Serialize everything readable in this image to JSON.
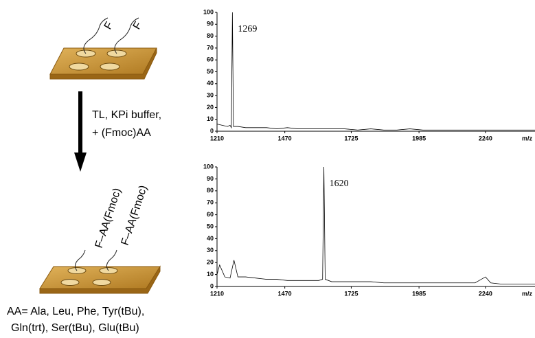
{
  "scheme": {
    "top_labels": [
      "F",
      "F"
    ],
    "step_lines": [
      "TL, KPi buffer,",
      "+ (Fmoc)AA"
    ],
    "bottom_labels": [
      "F–AA(Fmoc)",
      "F–AA(Fmoc)"
    ],
    "footer_lines": [
      "AA= Ala, Leu, Phe, Tyr(tBu),",
      "Gln(trt), Ser(tBu), Glu(tBu)"
    ]
  },
  "chart_data": [
    {
      "type": "line",
      "annotation": "1269",
      "xlabel": "m/z",
      "color": "#000000",
      "x": [
        1210,
        1230,
        1250,
        1260,
        1265,
        1269,
        1273,
        1290,
        1320,
        1360,
        1400,
        1440,
        1480,
        1520,
        1560,
        1600,
        1650,
        1700,
        1750,
        1800,
        1850,
        1900,
        1950,
        2000,
        2050,
        2100,
        2150,
        2200,
        2250,
        2300,
        2350,
        2400,
        2430
      ],
      "values": [
        6,
        5,
        4,
        5,
        3,
        100,
        4,
        4,
        3,
        3,
        3,
        2,
        3,
        2,
        2,
        2,
        2,
        2,
        1,
        2,
        1,
        1,
        2,
        1,
        1,
        1,
        1,
        1,
        1,
        1,
        1,
        1,
        1
      ],
      "xlim": [
        1210,
        2430
      ],
      "ylim": [
        0,
        100
      ],
      "xticks": [
        1210,
        1470,
        1725,
        1985,
        2240
      ],
      "yticks": [
        0,
        10,
        20,
        30,
        40,
        50,
        60,
        70,
        80,
        90,
        100
      ]
    },
    {
      "type": "line",
      "annotation": "1620",
      "xlabel": "m/z",
      "color": "#000000",
      "x": [
        1210,
        1220,
        1240,
        1260,
        1275,
        1290,
        1320,
        1360,
        1400,
        1440,
        1480,
        1520,
        1560,
        1600,
        1615,
        1620,
        1625,
        1650,
        1700,
        1750,
        1800,
        1850,
        1900,
        1950,
        2000,
        2050,
        2100,
        2150,
        2200,
        2240,
        2260,
        2300,
        2350,
        2400,
        2430
      ],
      "values": [
        10,
        18,
        8,
        7,
        22,
        8,
        8,
        7,
        6,
        6,
        5,
        5,
        5,
        5,
        6,
        100,
        6,
        4,
        4,
        4,
        4,
        3,
        3,
        3,
        3,
        3,
        3,
        3,
        3,
        8,
        3,
        2,
        2,
        2,
        2
      ],
      "xlim": [
        1210,
        2430
      ],
      "ylim": [
        0,
        100
      ],
      "xticks": [
        1210,
        1470,
        1725,
        1985,
        2240
      ],
      "yticks": [
        0,
        10,
        20,
        30,
        40,
        50,
        60,
        70,
        80,
        90,
        100
      ]
    }
  ]
}
